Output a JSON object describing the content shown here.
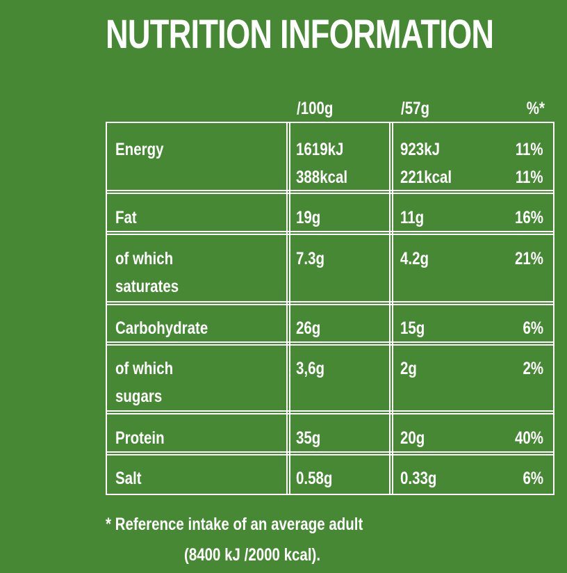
{
  "title": "NUTRITION INFORMATION",
  "columns": {
    "per100": "/100g",
    "perServing": "/57g",
    "ri": "%*"
  },
  "rows": [
    {
      "label": [
        "Energy"
      ],
      "per100": [
        "1619kJ",
        "388kcal"
      ],
      "perServing": [
        "923kJ",
        "221kcal"
      ],
      "ri": [
        "11%",
        "11%"
      ]
    },
    {
      "label": [
        "Fat"
      ],
      "per100": [
        "19g"
      ],
      "perServing": [
        "11g"
      ],
      "ri": [
        "16%"
      ]
    },
    {
      "label": [
        "of which",
        "saturates"
      ],
      "per100": [
        "7.3g"
      ],
      "perServing": [
        "4.2g"
      ],
      "ri": [
        "21%"
      ]
    },
    {
      "label": [
        "Carbohydrate"
      ],
      "per100": [
        "26g"
      ],
      "perServing": [
        "15g"
      ],
      "ri": [
        "6%"
      ]
    },
    {
      "label": [
        "of which",
        "sugars"
      ],
      "per100": [
        "3,6g"
      ],
      "perServing": [
        "2g"
      ],
      "ri": [
        "2%"
      ]
    },
    {
      "label": [
        "Protein"
      ],
      "per100": [
        "35g"
      ],
      "perServing": [
        "20g"
      ],
      "ri": [
        "40%"
      ]
    },
    {
      "label": [
        "Salt"
      ],
      "per100": [
        "0.58g"
      ],
      "perServing": [
        "0.33g"
      ],
      "ri": [
        "6%"
      ]
    }
  ],
  "footnote": {
    "line1": "* Reference intake of an average adult",
    "line2": "(8400 kJ /2000 kcal)."
  }
}
